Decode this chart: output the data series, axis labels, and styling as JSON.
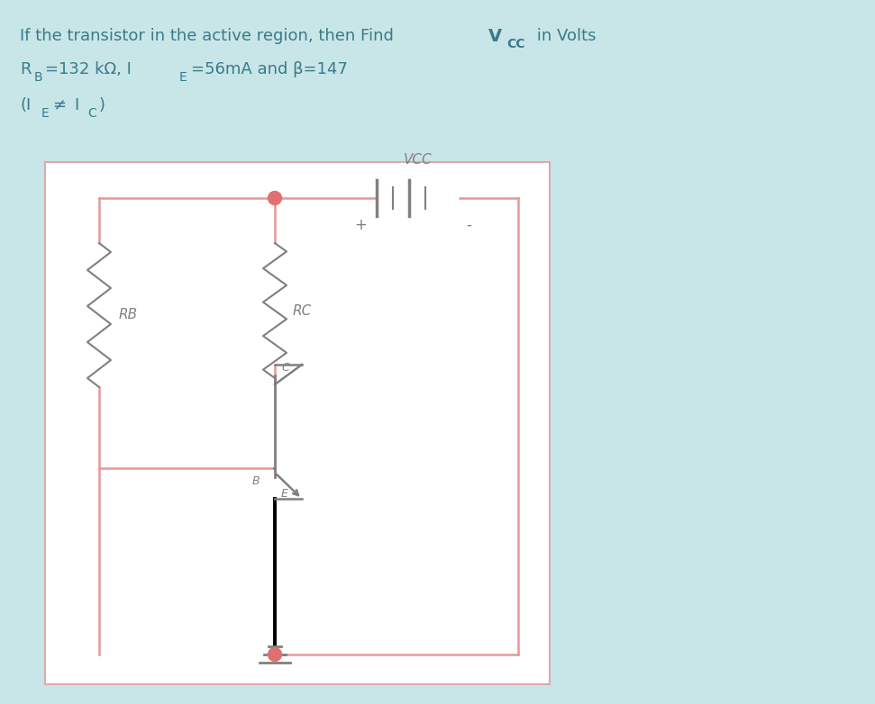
{
  "bg_color": "#c8e6e8",
  "circuit_bg": "#ffffff",
  "wire_color": "#e89898",
  "component_color": "#808080",
  "black_color": "#000000",
  "dot_color": "#e07070",
  "text_color": "#3a7a8a",
  "vcc_label": "VCC",
  "rc_label": "RC",
  "rb_label": "RB",
  "b_label": "B",
  "c_label": "C",
  "e_label": "E",
  "plus_label": "+",
  "minus_label": "-",
  "figw": 9.71,
  "figh": 7.82,
  "dpi": 100
}
